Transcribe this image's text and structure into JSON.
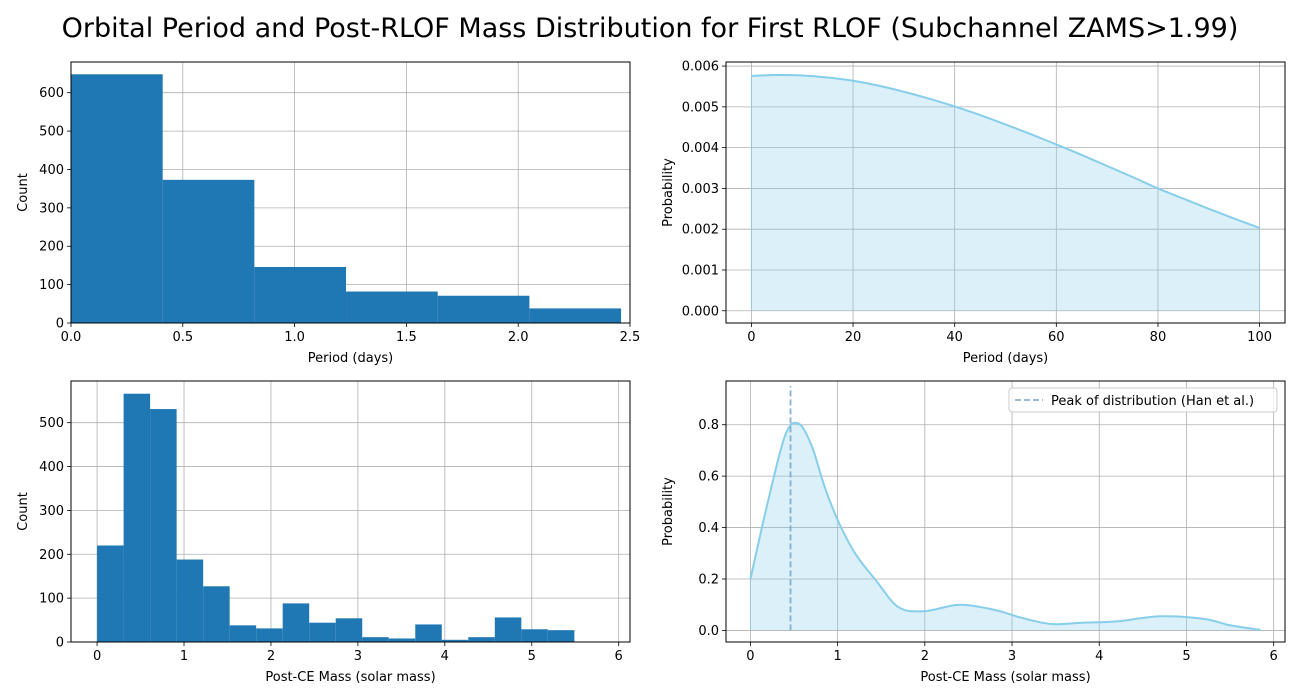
{
  "suptitle": "Orbital Period and Post-RLOF Mass Distribution for First RLOF (Subchannel ZAMS>1.99)",
  "chart_data": [
    {
      "type": "bar",
      "subtype": "histogram",
      "xlabel": "Period (days)",
      "ylabel": "Count",
      "xlim": [
        0,
        2.5
      ],
      "ylim": [
        0,
        680
      ],
      "xticks": [
        "0.0",
        "0.5",
        "1.0",
        "1.5",
        "2.0",
        "2.5"
      ],
      "yticks": [
        "0",
        "100",
        "200",
        "300",
        "400",
        "500",
        "600"
      ],
      "bin_edges": [
        0,
        0.41,
        0.82,
        1.23,
        1.64,
        2.05,
        2.46
      ],
      "values": [
        648,
        373,
        146,
        82,
        71,
        38
      ],
      "color": "#1f77b4",
      "grid": true
    },
    {
      "type": "area",
      "xlabel": "Period (days)",
      "ylabel": "Probability",
      "xlim": [
        -5,
        105
      ],
      "ylim": [
        -0.0003,
        0.0061
      ],
      "xticks": [
        "0",
        "20",
        "40",
        "60",
        "80",
        "100"
      ],
      "yticks": [
        "0.000",
        "0.001",
        "0.002",
        "0.003",
        "0.004",
        "0.005",
        "0.006"
      ],
      "x": [
        0,
        5,
        10,
        15,
        20,
        25,
        30,
        35,
        40,
        45,
        50,
        55,
        60,
        65,
        70,
        75,
        80,
        85,
        90,
        95,
        100
      ],
      "y": [
        0.00576,
        0.00578,
        0.00577,
        0.00572,
        0.00564,
        0.00552,
        0.00537,
        0.0052,
        0.00501,
        0.0048,
        0.00457,
        0.00433,
        0.00408,
        0.00382,
        0.00355,
        0.00328,
        0.003,
        0.00275,
        0.0025,
        0.00226,
        0.00203
      ],
      "color": "#87ceeb",
      "grid": true
    },
    {
      "type": "bar",
      "subtype": "histogram",
      "xlabel": "Post-CE Mass (solar mass)",
      "ylabel": "Count",
      "xlim": [
        -0.3,
        6.13
      ],
      "ylim": [
        0,
        595
      ],
      "xticks": [
        "0",
        "1",
        "2",
        "3",
        "4",
        "5",
        "6"
      ],
      "yticks": [
        "0",
        "100",
        "200",
        "300",
        "400",
        "500"
      ],
      "bin_edges": [
        0,
        0.305,
        0.61,
        0.915,
        1.22,
        1.525,
        1.83,
        2.135,
        2.44,
        2.745,
        3.05,
        3.355,
        3.66,
        3.965,
        4.27,
        4.575,
        4.88,
        5.185,
        5.49,
        5.795
      ],
      "values": [
        220,
        566,
        531,
        188,
        127,
        38,
        31,
        88,
        44,
        54,
        11,
        8,
        40,
        5,
        11,
        56,
        29,
        27,
        1
      ],
      "color": "#1f77b4",
      "grid": true
    },
    {
      "type": "area",
      "xlabel": "Post-CE Mass (solar mass)",
      "ylabel": "Probability",
      "xlim": [
        -0.28,
        6.13
      ],
      "ylim": [
        -0.045,
        0.97
      ],
      "xticks": [
        "0",
        "1",
        "2",
        "3",
        "4",
        "5",
        "6"
      ],
      "yticks": [
        "0.0",
        "0.2",
        "0.4",
        "0.6",
        "0.8"
      ],
      "x": [
        0,
        0.2,
        0.4,
        0.55,
        0.7,
        0.85,
        1.0,
        1.2,
        1.45,
        1.7,
        2.0,
        2.4,
        2.8,
        3.1,
        3.45,
        3.8,
        4.2,
        4.7,
        5.2,
        5.5,
        5.85
      ],
      "y": [
        0.2,
        0.5,
        0.76,
        0.805,
        0.72,
        0.56,
        0.43,
        0.3,
        0.19,
        0.09,
        0.075,
        0.1,
        0.08,
        0.05,
        0.025,
        0.03,
        0.035,
        0.055,
        0.045,
        0.02,
        0.002
      ],
      "color": "#87ceeb",
      "peak_x": 0.46,
      "peak_line_top": 0.95,
      "legend": [
        "Peak of distribution (Han et al.)"
      ],
      "legend_position": "top-right",
      "grid": true
    }
  ]
}
